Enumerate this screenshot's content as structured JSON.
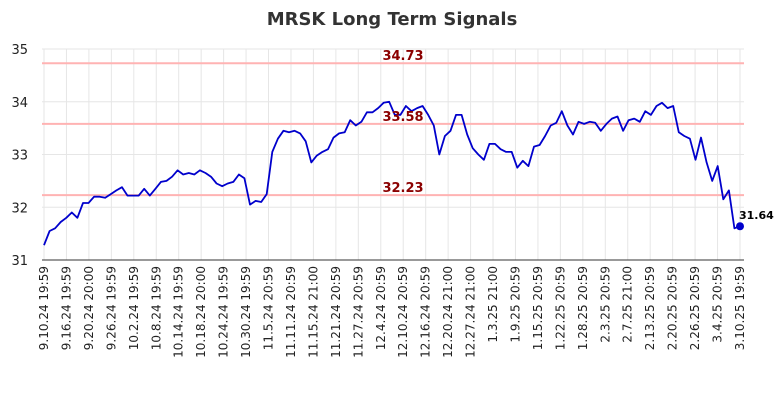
{
  "chart_data": {
    "type": "line",
    "title": "MRSK Long Term Signals",
    "xlabel": "",
    "ylabel": "",
    "ylim": [
      31,
      35
    ],
    "yticks": [
      31,
      32,
      33,
      34,
      35
    ],
    "grid": true,
    "line_color": "#0000cc",
    "ref_color": "#ffb3b3",
    "ref_label_color": "#8b0000",
    "reference_lines": [
      {
        "value": 34.73,
        "label": "34.73"
      },
      {
        "value": 33.58,
        "label": "33.58"
      },
      {
        "value": 32.23,
        "label": "32.23"
      }
    ],
    "last_point": {
      "value": 31.64,
      "label": "31.64"
    },
    "x_tick_labels": [
      "9.10.24 19:59",
      "9.16.24 19:59",
      "9.20.24 20:00",
      "9.26.24 19:59",
      "10.2.24 19:59",
      "10.8.24 19:59",
      "10.14.24 19:59",
      "10.18.24 20:00",
      "10.24.24 19:59",
      "10.30.24 19:59",
      "11.5.24 20:59",
      "11.11.24 20:59",
      "11.15.24 21:00",
      "11.21.24 20:59",
      "11.27.24 20:59",
      "12.4.24 20:59",
      "12.10.24 20:59",
      "12.16.24 20:59",
      "12.20.24 21:00",
      "12.27.24 21:00",
      "1.3.25 21:00",
      "1.9.25 20:59",
      "1.15.25 20:59",
      "1.22.25 20:59",
      "1.28.25 20:59",
      "2.3.25 20:59",
      "2.7.25 21:00",
      "2.13.25 20:59",
      "2.20.25 20:59",
      "2.26.25 20:59",
      "3.4.25 20:59",
      "3.10.25 19:59"
    ],
    "series": [
      {
        "values": [
          31.28,
          31.55,
          31.6,
          31.72,
          31.8,
          31.9,
          31.8,
          32.08,
          32.08,
          32.2,
          32.2,
          32.18,
          32.25,
          32.32,
          32.38,
          32.22,
          32.22,
          32.22,
          32.35,
          32.22,
          32.35,
          32.48,
          32.5,
          32.58,
          32.7,
          32.62,
          32.65,
          32.62,
          32.7,
          32.65,
          32.58,
          32.45,
          32.4,
          32.45,
          32.48,
          32.62,
          32.55,
          32.05,
          32.12,
          32.1,
          32.25,
          33.05,
          33.3,
          33.45,
          33.42,
          33.45,
          33.4,
          33.25,
          32.85,
          32.98,
          33.05,
          33.1,
          33.32,
          33.4,
          33.42,
          33.65,
          33.55,
          33.62,
          33.8,
          33.8,
          33.88,
          33.98,
          34.0,
          33.75,
          33.75,
          33.92,
          33.82,
          33.88,
          33.92,
          33.75,
          33.55,
          33.0,
          33.35,
          33.45,
          33.75,
          33.75,
          33.38,
          33.12,
          33.0,
          32.9,
          33.2,
          33.2,
          33.1,
          33.05,
          33.05,
          32.75,
          32.88,
          32.78,
          33.15,
          33.18,
          33.35,
          33.55,
          33.6,
          33.82,
          33.55,
          33.38,
          33.62,
          33.58,
          33.62,
          33.6,
          33.45,
          33.58,
          33.68,
          33.72,
          33.45,
          33.65,
          33.68,
          33.62,
          33.82,
          33.75,
          33.92,
          33.98,
          33.88,
          33.92,
          33.42,
          33.35,
          33.3,
          32.9,
          33.32,
          32.85,
          32.5,
          32.78,
          32.15,
          32.32,
          31.6,
          31.64
        ]
      }
    ]
  }
}
